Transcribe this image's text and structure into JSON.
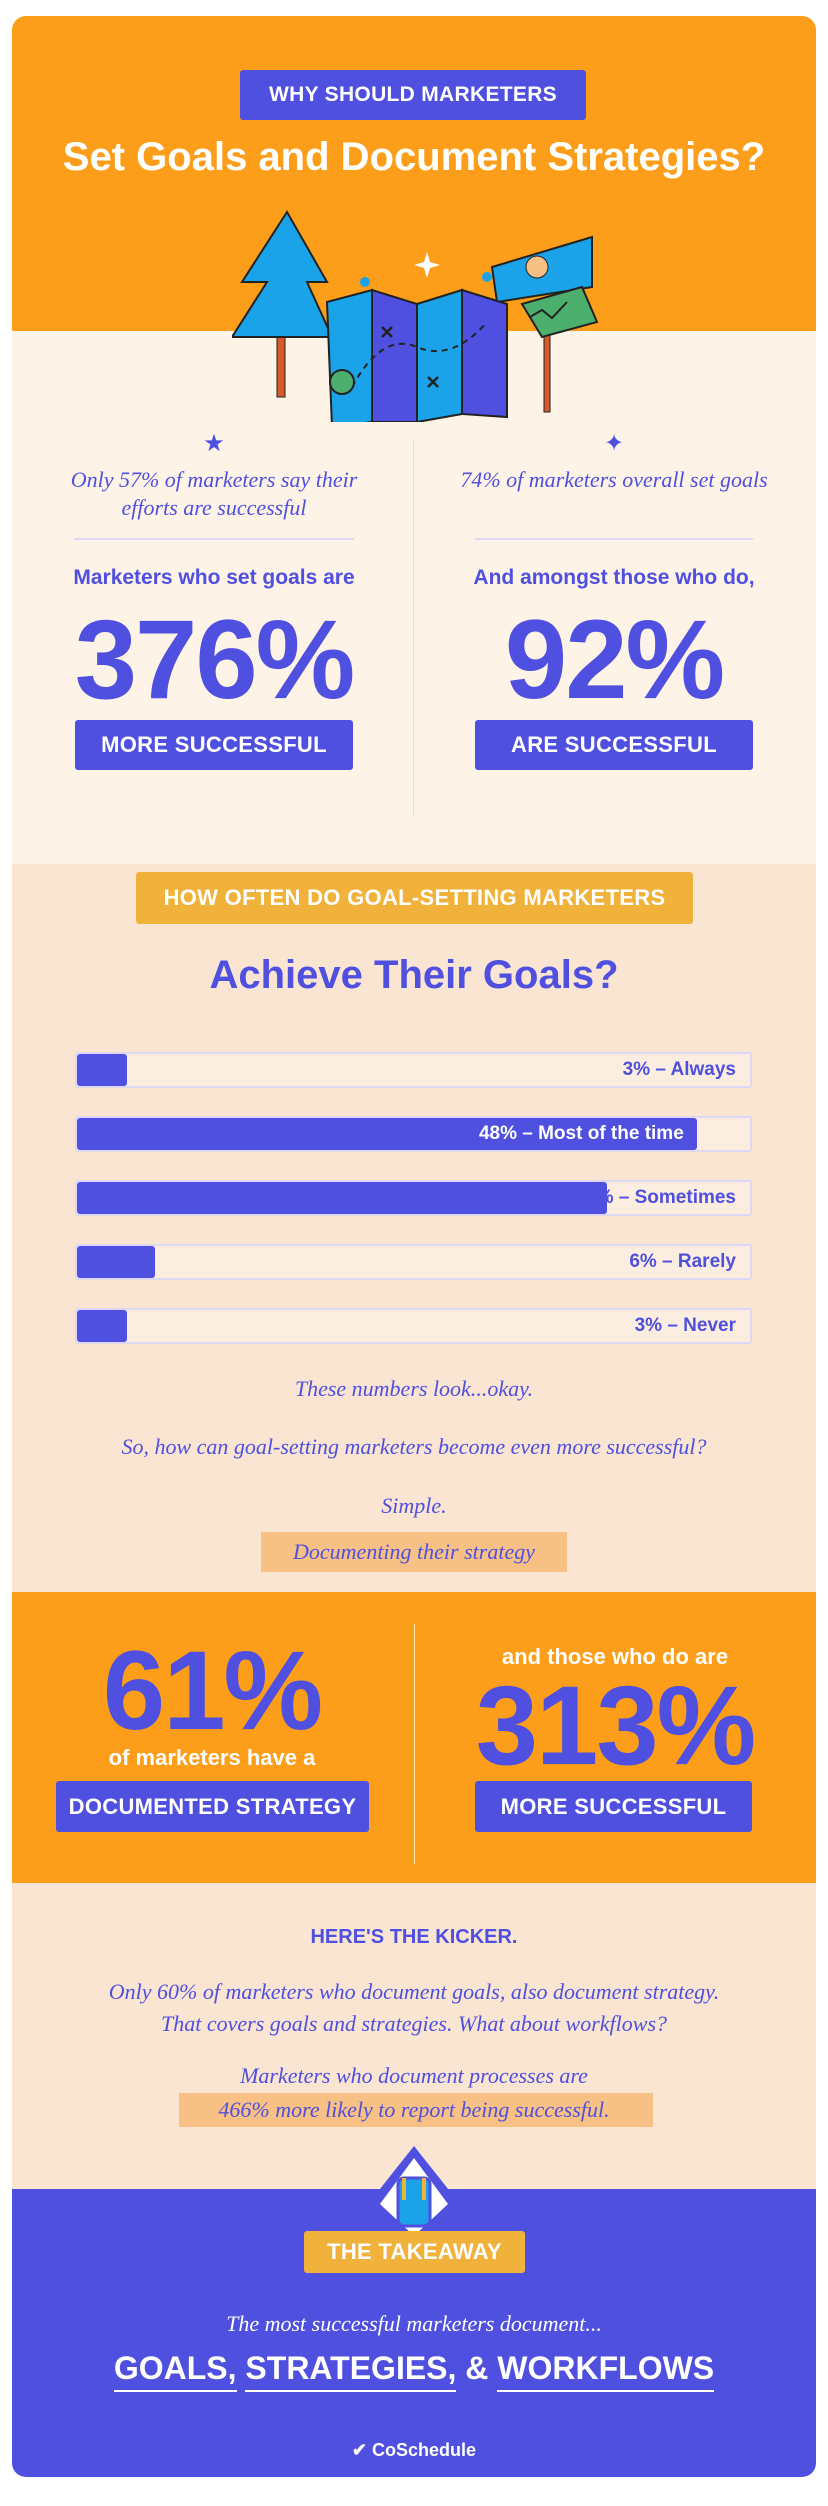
{
  "header": {
    "badge": "WHY SHOULD MARKETERS",
    "title": "Set Goals and Document Strategies?"
  },
  "stats1": {
    "left": {
      "icon": "star-icon",
      "note": "Only 57% of marketers say their efforts are successful",
      "lead": "Marketers who set goals are",
      "value": "376%",
      "button": "MORE SUCCESSFUL"
    },
    "right": {
      "icon": "sparkle-icon",
      "note": "74% of marketers overall set goals",
      "lead": "And amongst those who do,",
      "value": "92%",
      "button": "ARE SUCCESSFUL"
    }
  },
  "achieve": {
    "badge": "HOW OFTEN DO GOAL-SETTING MARKETERS",
    "title": "Achieve Their Goals?",
    "bars": [
      {
        "label": "3% – Always",
        "value": 3
      },
      {
        "label": "48% – Most of the time",
        "value": 48
      },
      {
        "label": "41% – Sometimes",
        "value": 41
      },
      {
        "label": "6% – Rarely",
        "value": 6
      },
      {
        "label": "3% – Never",
        "value": 3
      }
    ],
    "line1": "These numbers look...okay.",
    "line2": "So, how can goal-setting marketers become even more successful?",
    "line3": "Simple.",
    "highlight": "Documenting their strategy"
  },
  "chart_data": {
    "type": "bar",
    "orientation": "horizontal",
    "categories": [
      "Always",
      "Most of the time",
      "Sometimes",
      "Rarely",
      "Never"
    ],
    "values": [
      3,
      48,
      41,
      6,
      3
    ],
    "unit": "%"
  },
  "stats2": {
    "left": {
      "value": "61%",
      "lead": "of marketers have a",
      "button": "DOCUMENTED STRATEGY"
    },
    "right": {
      "lead": "and those who do are",
      "value": "313%",
      "button": "MORE SUCCESSFUL"
    }
  },
  "kicker": {
    "title": "HERE'S THE KICKER.",
    "line1": "Only 60% of marketers who document goals, also document strategy.",
    "line2": "That covers goals and strategies. What about workflows?",
    "line3": "Marketers who document processes are",
    "highlight": "466% more likely to report being successful."
  },
  "takeaway": {
    "icon": "backpack-icon",
    "badge": "THE TAKEAWAY",
    "text": "The most successful marketers document...",
    "w1": "GOALS,",
    "w2": "STRATEGIES,",
    "amp": "&",
    "w3": "WORKFLOWS",
    "brand": "CoSchedule"
  },
  "colors": {
    "orange": "#fd9e1a",
    "purple": "#4f4fe0",
    "cream": "#fdf3e7",
    "peach": "#f9e5d2",
    "yellow": "#f0b23a",
    "highlight": "#f7c185"
  }
}
